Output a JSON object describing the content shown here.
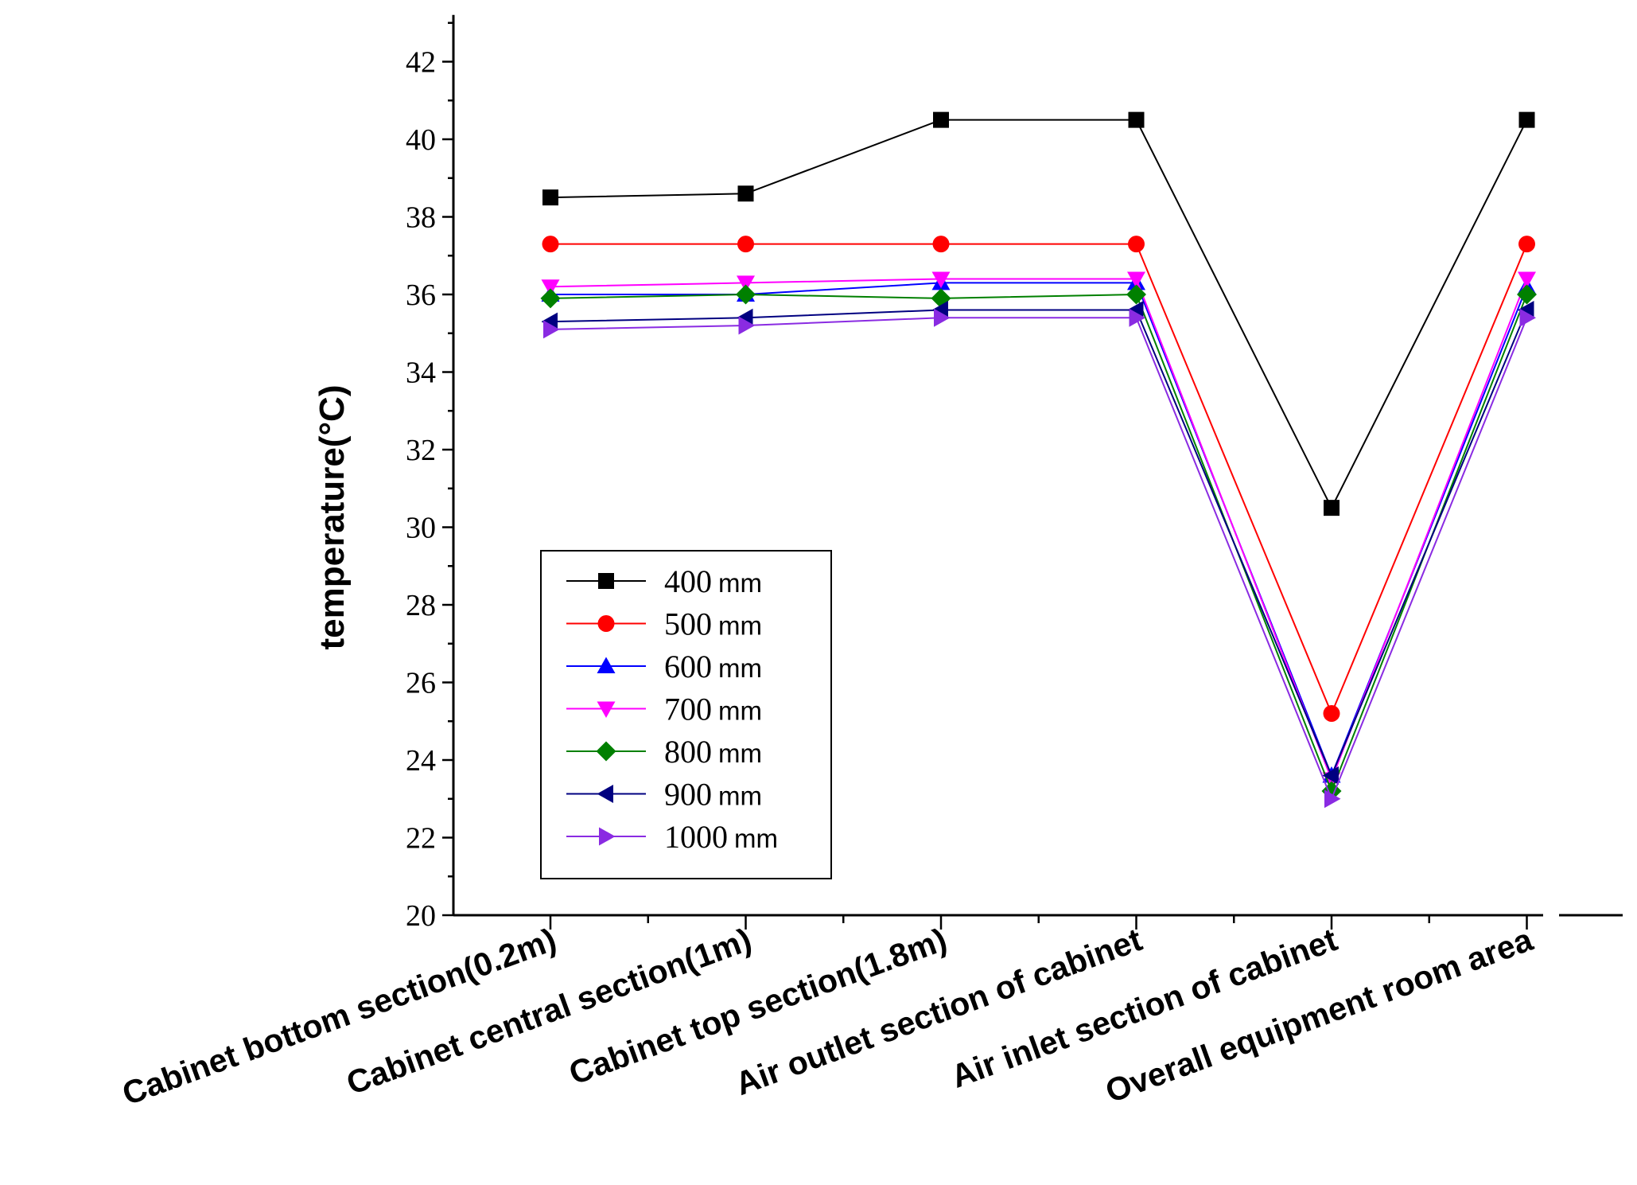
{
  "chart_data": {
    "type": "line",
    "title": "",
    "xlabel": "",
    "ylabel": "temperature(°C)",
    "ylim": [
      20,
      43
    ],
    "yticks": [
      20,
      22,
      24,
      26,
      28,
      30,
      32,
      34,
      36,
      38,
      40,
      42
    ],
    "categories": [
      "Cabinet bottom section(0.2m)",
      "Cabinet central section(1m)",
      "Cabinet top section(1.8m)",
      "Air outlet section of cabinet",
      "Air inlet section of cabinet",
      "Overall equipment room area"
    ],
    "legend_position": "bottom-left",
    "grid": false,
    "series": [
      {
        "name": "400",
        "unit": "mm",
        "color": "#000000",
        "marker": "square",
        "values": [
          38.5,
          38.6,
          40.5,
          40.5,
          30.5,
          40.5
        ]
      },
      {
        "name": "500",
        "unit": "mm",
        "color": "#ff0000",
        "marker": "circle",
        "values": [
          37.3,
          37.3,
          37.3,
          37.3,
          25.2,
          37.3
        ]
      },
      {
        "name": "600",
        "unit": "mm",
        "color": "#0000ff",
        "marker": "triangle-up",
        "values": [
          36.0,
          36.0,
          36.3,
          36.3,
          23.6,
          36.2
        ]
      },
      {
        "name": "700",
        "unit": "mm",
        "color": "#ff00ff",
        "marker": "triangle-down",
        "values": [
          36.2,
          36.3,
          36.4,
          36.4,
          23.5,
          36.4
        ]
      },
      {
        "name": "800",
        "unit": "mm",
        "color": "#008000",
        "marker": "diamond",
        "values": [
          35.9,
          36.0,
          35.9,
          36.0,
          23.2,
          36.0
        ]
      },
      {
        "name": "900",
        "unit": "mm",
        "color": "#000080",
        "marker": "triangle-left",
        "values": [
          35.3,
          35.4,
          35.6,
          35.6,
          23.6,
          35.6
        ]
      },
      {
        "name": "1000",
        "unit": "mm",
        "color": "#8a2be2",
        "marker": "triangle-right",
        "values": [
          35.1,
          35.2,
          35.4,
          35.4,
          23.0,
          35.4
        ]
      }
    ]
  }
}
